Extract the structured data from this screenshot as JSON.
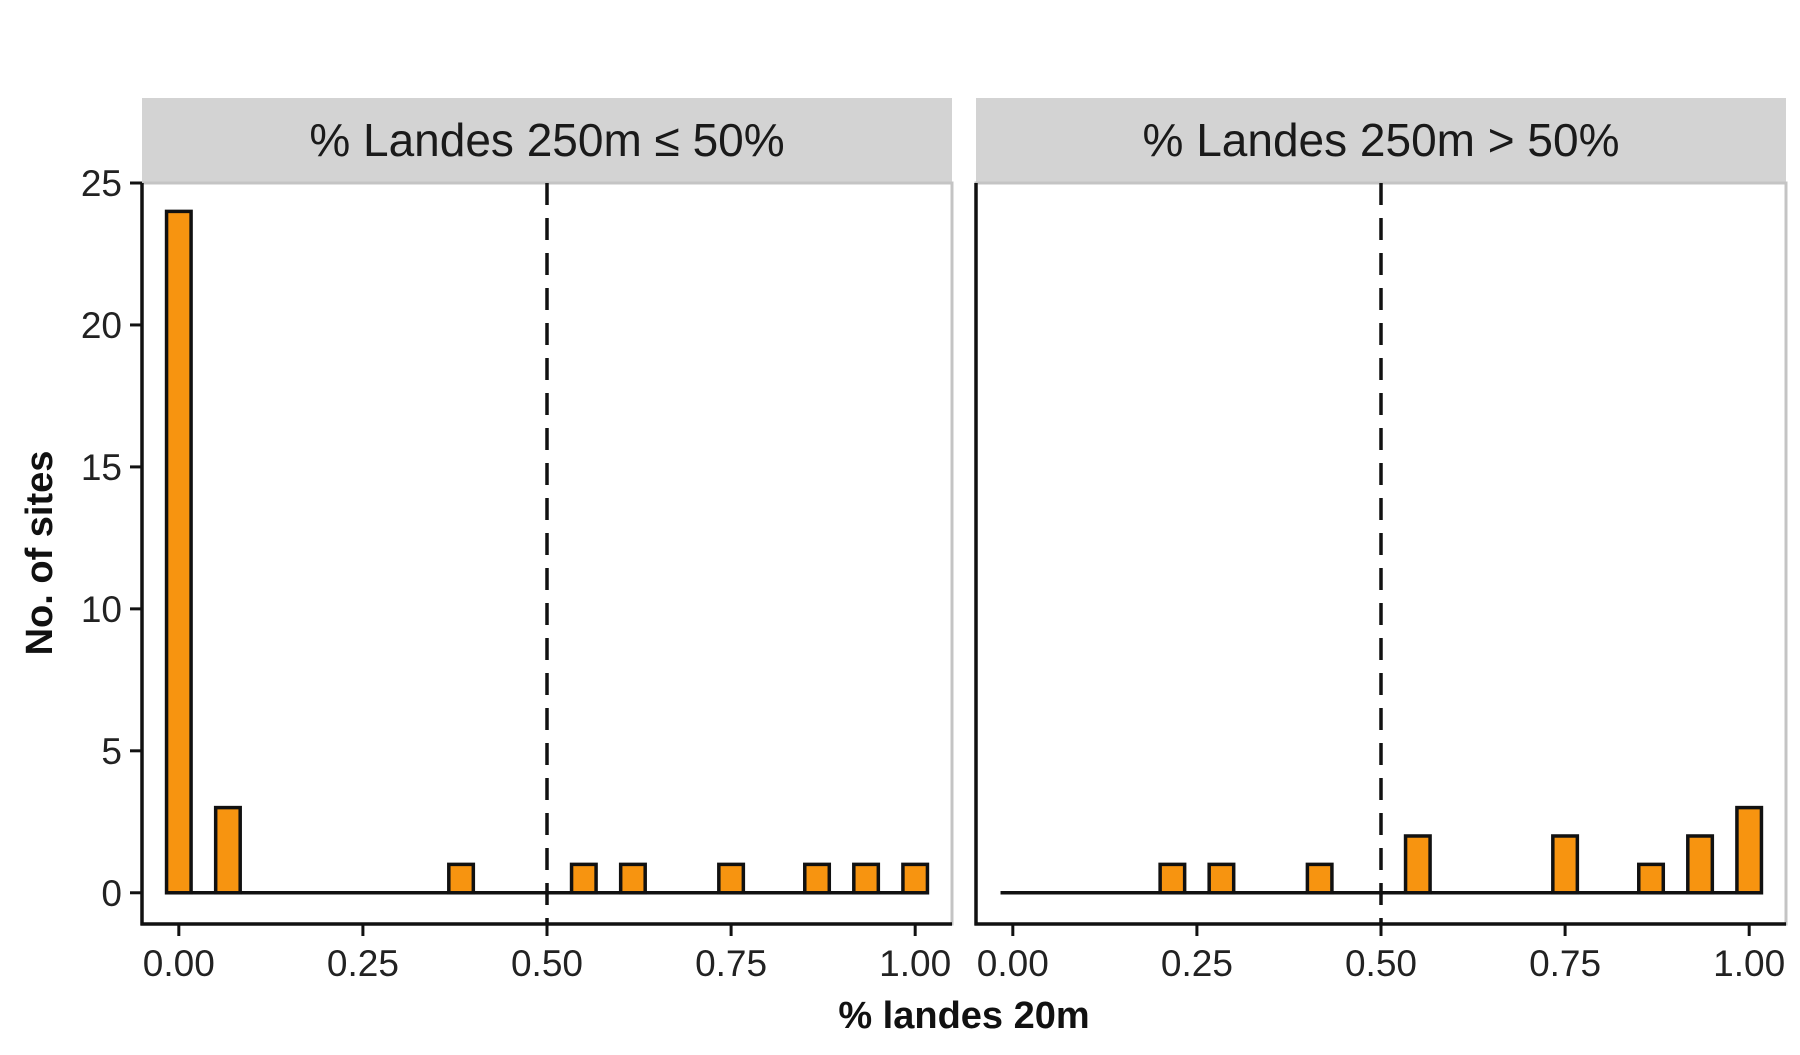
{
  "chart_data": {
    "type": "bar",
    "xlabel": "% landes 20m",
    "ylabel": "No. of sites",
    "ylim": [
      -1.1,
      25
    ],
    "yticks": [
      0,
      5,
      10,
      15,
      20,
      25
    ],
    "xlim": [
      -0.05,
      1.05
    ],
    "xticks": [
      "0.00",
      "0.25",
      "0.50",
      "0.75",
      "1.00"
    ],
    "bin_width": 0.0333,
    "bin_range": [
      -0.0167,
      1.0167
    ],
    "reference_line_x": 0.5,
    "reference_line_style": "dashed",
    "fill_color": "#F79410",
    "outline_color": "#111111",
    "strip_color": "#D3D3D3",
    "grid": false,
    "facets": [
      {
        "strip_label": "% Landes 250m ≤ 50%",
        "bins": [
          {
            "x": 0.0,
            "count": 24
          },
          {
            "x": 0.0667,
            "count": 3
          },
          {
            "x": 0.3833,
            "count": 1
          },
          {
            "x": 0.55,
            "count": 1
          },
          {
            "x": 0.6167,
            "count": 1
          },
          {
            "x": 0.75,
            "count": 1
          },
          {
            "x": 0.8667,
            "count": 1
          },
          {
            "x": 0.9333,
            "count": 1
          },
          {
            "x": 1.0,
            "count": 1
          }
        ]
      },
      {
        "strip_label": "% Landes 250m > 50%",
        "bins": [
          {
            "x": 0.2167,
            "count": 1
          },
          {
            "x": 0.2833,
            "count": 1
          },
          {
            "x": 0.4167,
            "count": 1
          },
          {
            "x": 0.55,
            "count": 2
          },
          {
            "x": 0.75,
            "count": 2
          },
          {
            "x": 0.8667,
            "count": 1
          },
          {
            "x": 0.9333,
            "count": 2
          },
          {
            "x": 1.0,
            "count": 3
          }
        ]
      }
    ]
  }
}
